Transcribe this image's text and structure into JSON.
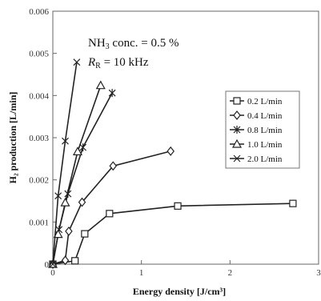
{
  "chart_data": {
    "type": "line",
    "title": "",
    "xlabel": "Energy density [J/cm³]",
    "ylabel": "H₂ production [L/min]",
    "xlim": [
      0,
      3
    ],
    "ylim": [
      0,
      0.006
    ],
    "x_ticks": [
      "0",
      "1",
      "2",
      "3"
    ],
    "y_ticks": [
      "0",
      "0.001",
      "0.002",
      "0.003",
      "0.004",
      "0.005",
      "0.006"
    ],
    "grid": false,
    "legend_position": "right",
    "annotation_lines": [
      {
        "parts": [
          "NH",
          "3",
          " conc. = 0.5 %"
        ]
      },
      {
        "parts": [
          "R",
          "R",
          " = 10 kHz"
        ]
      }
    ],
    "series": [
      {
        "name": "0.2 L/min",
        "marker": "square",
        "x": [
          0,
          0.25,
          0.36,
          0.64,
          1.41,
          2.71
        ],
        "y": [
          0,
          8e-05,
          0.00072,
          0.0012,
          0.00138,
          0.00144
        ]
      },
      {
        "name": "0.4 L/min",
        "marker": "diamond",
        "x": [
          0,
          0.14,
          0.18,
          0.33,
          0.68,
          1.33
        ],
        "y": [
          0,
          9e-05,
          0.00078,
          0.00147,
          0.00233,
          0.00268
        ]
      },
      {
        "name": "0.8 L/min",
        "marker": "asterisk",
        "x": [
          0,
          0.07,
          0.17,
          0.34,
          0.67
        ],
        "y": [
          0,
          0.00082,
          0.00167,
          0.00277,
          0.00406
        ]
      },
      {
        "name": "1.0 L/min",
        "marker": "triangle",
        "x": [
          0,
          0.06,
          0.14,
          0.28,
          0.54
        ],
        "y": [
          0,
          0.00071,
          0.00146,
          0.00267,
          0.00424
        ]
      },
      {
        "name": "2.0 L/min",
        "marker": "cross",
        "x": [
          0,
          0.06,
          0.14,
          0.27
        ],
        "y": [
          0,
          0.00162,
          0.00292,
          0.00479
        ]
      }
    ]
  }
}
